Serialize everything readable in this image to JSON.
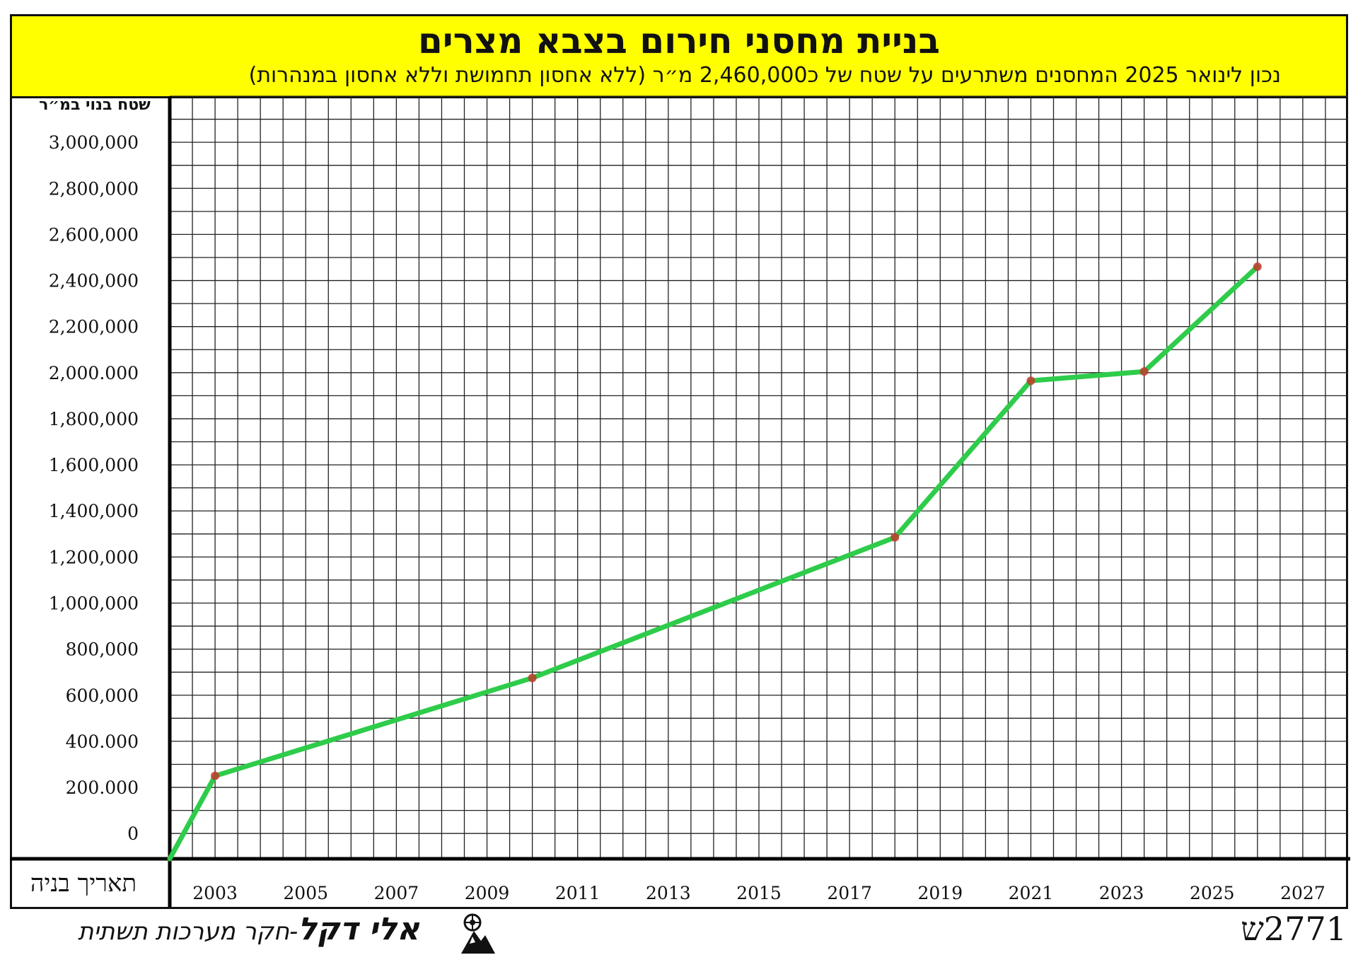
{
  "header": {
    "title": "בניית מחסני חירום בצבא מצרים",
    "subtitle": "נכון לינואר 2025 המחסנים משתרעים על שטח של כ2,460,000 מ״ר (ללא אחסון תחמושת וללא אחסון במנהרות)"
  },
  "chart_data": {
    "type": "line",
    "title": "בניית מחסני חירום בצבא מצרים",
    "subtitle": "נכון לינואר 2025 המחסנים משתרעים על שטח של כ2,460,000 מ״ר (ללא אחסון תחמושת וללא אחסון במנהרות)",
    "ylabel": "שטח בנוי במ״ר",
    "xlabel": "תאריך בניה",
    "xlim": [
      2002,
      2028
    ],
    "ylim": [
      -110000,
      3200000
    ],
    "x_ticks": [
      2003,
      2005,
      2007,
      2009,
      2011,
      2013,
      2015,
      2017,
      2019,
      2021,
      2023,
      2025,
      2027
    ],
    "y_ticks": [
      {
        "value": 0,
        "label": "0"
      },
      {
        "value": 200000,
        "label": "200.000"
      },
      {
        "value": 400000,
        "label": "400.000"
      },
      {
        "value": 600000,
        "label": "600,000"
      },
      {
        "value": 800000,
        "label": "800,000"
      },
      {
        "value": 1000000,
        "label": "1,000,000"
      },
      {
        "value": 1200000,
        "label": "1,200,000"
      },
      {
        "value": 1400000,
        "label": "1,400,000"
      },
      {
        "value": 1600000,
        "label": "1,600,000"
      },
      {
        "value": 1800000,
        "label": "1,800,000"
      },
      {
        "value": 2000000,
        "label": "2,000.000"
      },
      {
        "value": 2200000,
        "label": "2,200,000"
      },
      {
        "value": 2400000,
        "label": "2,400,000"
      },
      {
        "value": 2600000,
        "label": "2,600,000"
      },
      {
        "value": 2800000,
        "label": "2,800,000"
      },
      {
        "value": 3000000,
        "label": "3,000,000"
      }
    ],
    "series": [
      {
        "x": [
          2002,
          2003,
          2010,
          2018,
          2021,
          2023.5,
          2026
        ],
        "y": [
          -110000,
          250000,
          675000,
          1285000,
          1965000,
          2005000,
          2460000
        ],
        "markers": [
          false,
          true,
          true,
          true,
          true,
          true,
          true
        ]
      }
    ],
    "grid": true,
    "line_color": "#2ecc4a",
    "marker_color": "#c0392b",
    "header_color": "#ffff00"
  },
  "footer": {
    "author_name": "אלי דקל",
    "author_role": "-חקר מערכות תשתית",
    "code": "2771ש"
  }
}
